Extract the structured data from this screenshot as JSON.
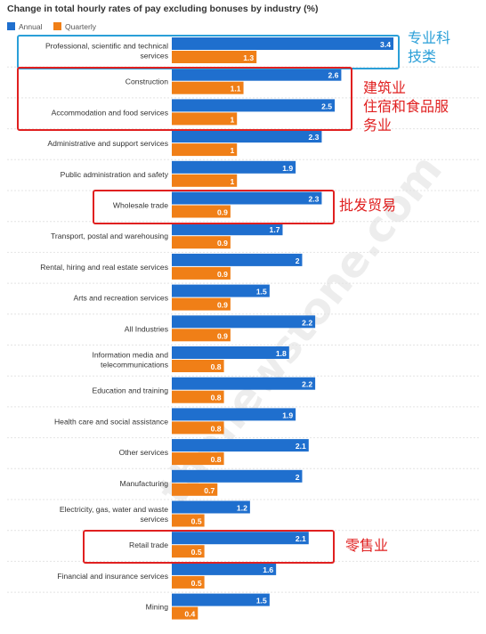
{
  "chart_data": {
    "type": "bar",
    "orientation": "horizontal",
    "title": "Change in total hourly rates of pay excluding bonuses by industry (%)",
    "xlim": [
      0,
      3.4
    ],
    "grid": false,
    "legend_position": "top-left",
    "categories": [
      "Professional, scientific and technical services",
      "Construction",
      "Accommodation and food services",
      "Administrative and support services",
      "Public administration and safety",
      "Wholesale trade",
      "Transport, postal and warehousing",
      "Rental, hiring and real estate services",
      "Arts and recreation services",
      "All Industries",
      "Information media and telecommunications",
      "Education and training",
      "Health care and social assistance",
      "Other services",
      "Manufacturing",
      "Electricity, gas, water and waste services",
      "Retail trade",
      "Financial and insurance services",
      "Mining"
    ],
    "category_lines": [
      [
        "Professional, scientific and technical",
        "services"
      ],
      [
        "Construction"
      ],
      [
        "Accommodation and food services"
      ],
      [
        "Administrative and support services"
      ],
      [
        "Public administration and safety"
      ],
      [
        "Wholesale trade"
      ],
      [
        "Transport, postal and warehousing"
      ],
      [
        "Rental, hiring and real estate services"
      ],
      [
        "Arts and recreation services"
      ],
      [
        "All Industries"
      ],
      [
        "Information media and",
        "telecommunications"
      ],
      [
        "Education and training"
      ],
      [
        "Health care and social assistance"
      ],
      [
        "Other services"
      ],
      [
        "Manufacturing"
      ],
      [
        "Electricity, gas, water and waste",
        "services"
      ],
      [
        "Retail trade"
      ],
      [
        "Financial and insurance services"
      ],
      [
        "Mining"
      ]
    ],
    "series": [
      {
        "name": "Annual",
        "color": "#1f6fce",
        "values": [
          3.4,
          2.6,
          2.5,
          2.3,
          1.9,
          2.3,
          1.7,
          2.0,
          1.5,
          2.2,
          1.8,
          2.2,
          1.9,
          2.1,
          2.0,
          1.2,
          2.1,
          1.6,
          1.5
        ],
        "labels": [
          "3.4",
          "2.6",
          "2.5",
          "2.3",
          "1.9",
          "2.3",
          "1.7",
          "2",
          "1.5",
          "2.2",
          "1.8",
          "2.2",
          "1.9",
          "2.1",
          "2",
          "1.2",
          "2.1",
          "1.6",
          "1.5"
        ]
      },
      {
        "name": "Quarterly",
        "color": "#f07f17",
        "values": [
          1.3,
          1.1,
          1.0,
          1.0,
          1.0,
          0.9,
          0.9,
          0.9,
          0.9,
          0.9,
          0.8,
          0.8,
          0.8,
          0.8,
          0.7,
          0.5,
          0.5,
          0.5,
          0.4
        ],
        "labels": [
          "1.3",
          "1.1",
          "1",
          "1",
          "1",
          "0.9",
          "0.9",
          "0.9",
          "0.9",
          "0.9",
          "0.8",
          "0.8",
          "0.8",
          "0.8",
          "0.7",
          "0.5",
          "0.5",
          "0.5",
          "0.4"
        ]
      }
    ]
  },
  "annotations": [
    {
      "lines": [
        "专业科",
        "技类"
      ],
      "color": "#2a9fd8",
      "box_color": "#2a9fd8"
    },
    {
      "lines": [
        "建筑业",
        "住宿和食品服",
        "务业"
      ],
      "color": "#e02020",
      "box_color": "#e02020"
    },
    {
      "lines": [
        "批发贸易"
      ],
      "color": "#e02020",
      "box_color": "#e02020"
    },
    {
      "lines": [
        "零售业"
      ],
      "color": "#e02020",
      "box_color": "#e02020"
    }
  ],
  "watermark": {
    "text": "thenewstone.com"
  }
}
